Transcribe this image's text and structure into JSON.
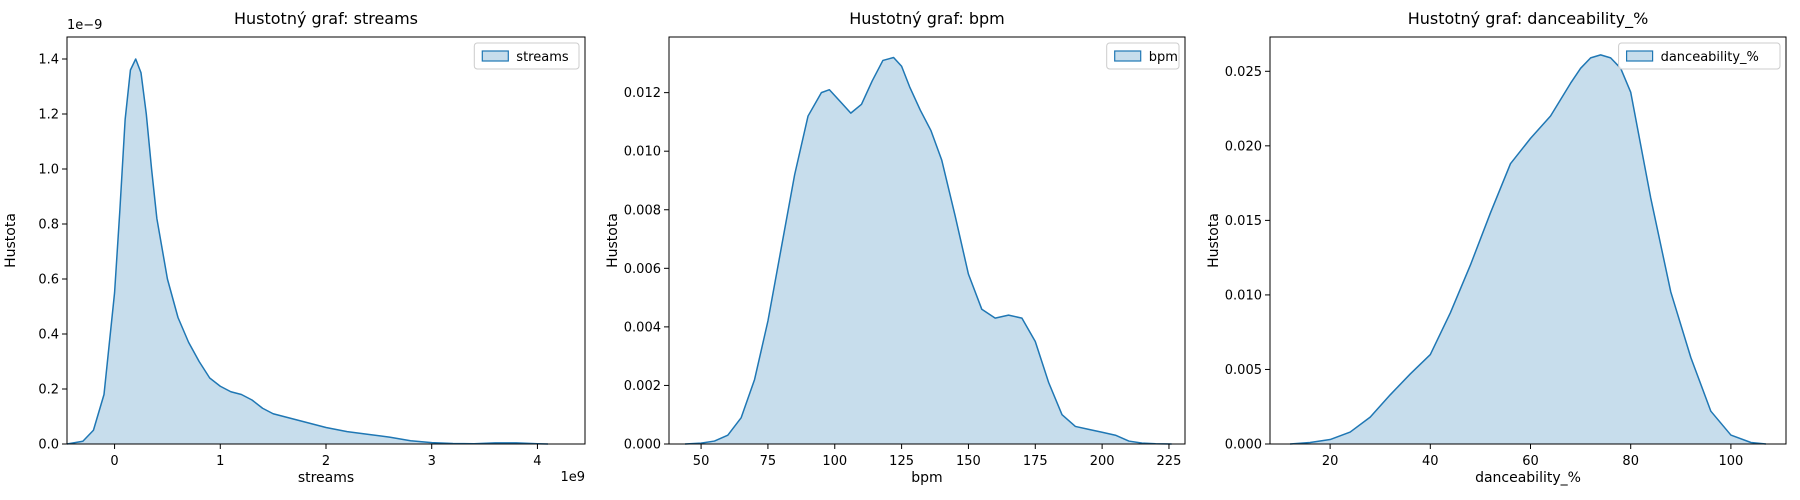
{
  "chart_data": [
    {
      "type": "area",
      "title": "Hustotný graf: streams",
      "xlabel": "streams",
      "ylabel": "Hustota",
      "x_scale_text": "1e9",
      "y_scale_text": "1e−9",
      "xlim": [
        -0.45,
        4.45
      ],
      "ylim": [
        0,
        1.48
      ],
      "x_ticks": [
        0,
        1,
        2,
        3,
        4
      ],
      "x_tick_labels": [
        "0",
        "1",
        "2",
        "3",
        "4"
      ],
      "y_ticks": [
        0,
        0.2,
        0.4,
        0.6,
        0.8,
        1.0,
        1.2,
        1.4
      ],
      "y_tick_labels": [
        "0.0",
        "0.2",
        "0.4",
        "0.6",
        "0.8",
        "1.0",
        "1.2",
        "1.4"
      ],
      "legend": "top-right",
      "grid": false,
      "color": "#1f77b4",
      "series": [
        {
          "name": "streams",
          "x": [
            -0.45,
            -0.3,
            -0.2,
            -0.1,
            0.0,
            0.05,
            0.1,
            0.15,
            0.2,
            0.25,
            0.3,
            0.35,
            0.4,
            0.5,
            0.6,
            0.7,
            0.8,
            0.9,
            1.0,
            1.1,
            1.2,
            1.3,
            1.4,
            1.5,
            1.6,
            1.8,
            2.0,
            2.2,
            2.4,
            2.6,
            2.8,
            3.0,
            3.2,
            3.4,
            3.6,
            3.8,
            4.0,
            4.1
          ],
          "y": [
            0.0,
            0.01,
            0.05,
            0.18,
            0.55,
            0.85,
            1.18,
            1.36,
            1.4,
            1.35,
            1.2,
            1.0,
            0.82,
            0.6,
            0.46,
            0.37,
            0.3,
            0.24,
            0.21,
            0.19,
            0.18,
            0.16,
            0.13,
            0.11,
            0.1,
            0.08,
            0.06,
            0.045,
            0.035,
            0.025,
            0.012,
            0.005,
            0.002,
            0.001,
            0.004,
            0.004,
            0.001,
            0.0
          ]
        }
      ]
    },
    {
      "type": "area",
      "title": "Hustotný graf: bpm",
      "xlabel": "bpm",
      "ylabel": "Hustota",
      "xlim": [
        38,
        231
      ],
      "ylim": [
        0,
        0.0139
      ],
      "x_ticks": [
        50,
        75,
        100,
        125,
        150,
        175,
        200,
        225
      ],
      "x_tick_labels": [
        "50",
        "75",
        "100",
        "125",
        "150",
        "175",
        "200",
        "225"
      ],
      "y_ticks": [
        0,
        0.002,
        0.004,
        0.006,
        0.008,
        0.01,
        0.012
      ],
      "y_tick_labels": [
        "0.000",
        "0.002",
        "0.004",
        "0.006",
        "0.008",
        "0.010",
        "0.012"
      ],
      "legend": "top-right",
      "grid": false,
      "color": "#1f77b4",
      "series": [
        {
          "name": "bpm",
          "x": [
            44,
            50,
            55,
            60,
            65,
            70,
            75,
            80,
            85,
            90,
            95,
            98,
            102,
            106,
            110,
            114,
            118,
            122,
            125,
            128,
            132,
            136,
            140,
            145,
            150,
            155,
            160,
            165,
            170,
            175,
            180,
            185,
            190,
            195,
            200,
            205,
            210,
            215,
            220,
            226
          ],
          "y": [
            0.0,
            3e-05,
            0.0001,
            0.0003,
            0.0009,
            0.0022,
            0.0042,
            0.0067,
            0.0092,
            0.0112,
            0.012,
            0.0121,
            0.0117,
            0.0113,
            0.0116,
            0.0124,
            0.0131,
            0.0132,
            0.0129,
            0.0122,
            0.0114,
            0.0107,
            0.0097,
            0.0078,
            0.0058,
            0.0046,
            0.0043,
            0.0044,
            0.0043,
            0.0035,
            0.0021,
            0.001,
            0.0006,
            0.0005,
            0.0004,
            0.0003,
            0.0001,
            3e-05,
            1e-05,
            0.0
          ]
        }
      ]
    },
    {
      "type": "area",
      "title": "Hustotný graf: danceability_%",
      "xlabel": "danceability_%",
      "ylabel": "Hustota",
      "xlim": [
        8,
        111
      ],
      "ylim": [
        0,
        0.0273
      ],
      "x_ticks": [
        20,
        40,
        60,
        80,
        100
      ],
      "x_tick_labels": [
        "20",
        "40",
        "60",
        "80",
        "100"
      ],
      "y_ticks": [
        0,
        0.005,
        0.01,
        0.015,
        0.02,
        0.025
      ],
      "y_tick_labels": [
        "0.000",
        "0.005",
        "0.010",
        "0.015",
        "0.020",
        "0.025"
      ],
      "legend": "top-right",
      "grid": false,
      "color": "#1f77b4",
      "series": [
        {
          "name": "danceability_%",
          "x": [
            12,
            16,
            20,
            24,
            28,
            32,
            36,
            40,
            44,
            48,
            52,
            56,
            60,
            64,
            68,
            70,
            72,
            74,
            76,
            78,
            80,
            84,
            88,
            92,
            96,
            100,
            104,
            107
          ],
          "y": [
            0.0,
            0.0001,
            0.0003,
            0.0008,
            0.0018,
            0.0033,
            0.0047,
            0.006,
            0.0088,
            0.012,
            0.0155,
            0.0188,
            0.0205,
            0.022,
            0.0242,
            0.0252,
            0.0259,
            0.0261,
            0.0259,
            0.0252,
            0.0236,
            0.0165,
            0.0102,
            0.0058,
            0.0022,
            0.0006,
            0.0001,
            0.0
          ]
        }
      ]
    }
  ]
}
